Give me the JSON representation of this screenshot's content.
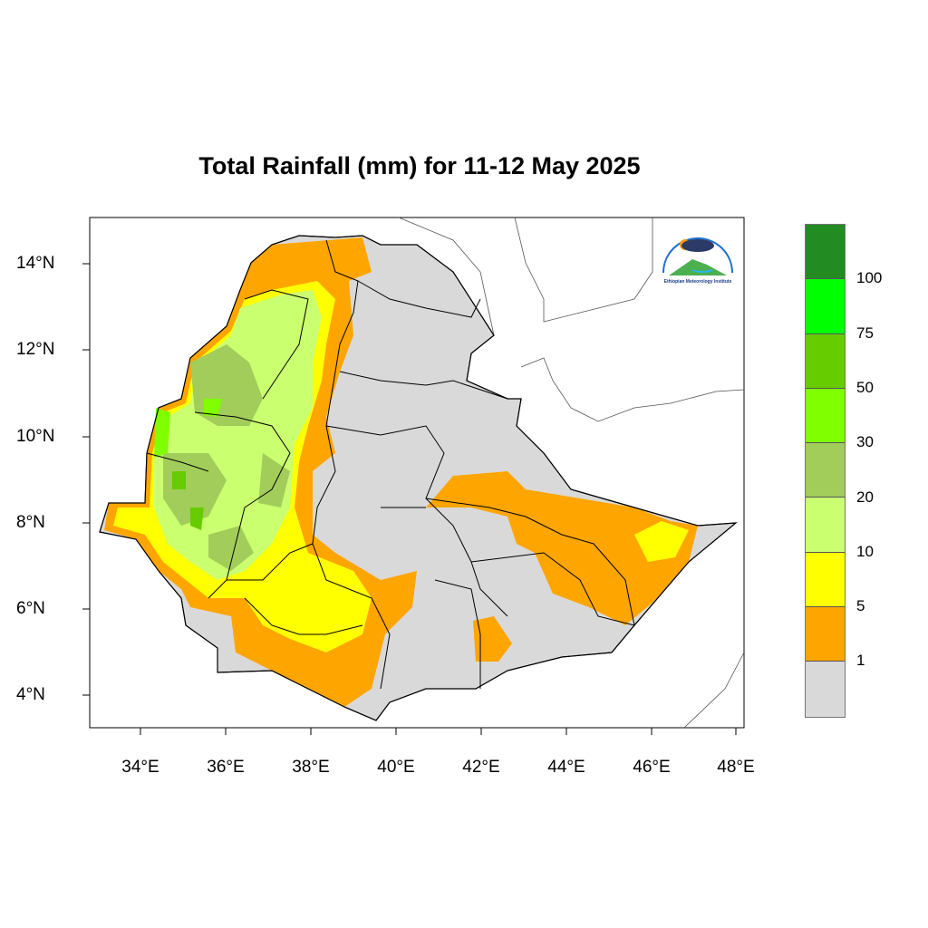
{
  "title": "Total Rainfall (mm) for 11-12 May 2025",
  "x_ticks": [
    "34°E",
    "36°E",
    "38°E",
    "40°E",
    "42°E",
    "44°E",
    "46°E",
    "48°E"
  ],
  "y_ticks": [
    "14°N",
    "12°N",
    "10°N",
    "8°N",
    "6°N",
    "4°N"
  ],
  "legend": {
    "colors": [
      "#228b22",
      "#00ff00",
      "#66cc00",
      "#7fff00",
      "#a2cd5a",
      "#caff70",
      "#ffff00",
      "#ffa500",
      "#d9d9d9"
    ],
    "labels": [
      "100",
      "75",
      "50",
      "30",
      "20",
      "10",
      "5",
      "1"
    ]
  },
  "logo": {
    "text": "Ethiopian Meteorology Institute"
  },
  "map": {
    "region": "Ethiopia",
    "lon_range": [
      33,
      48.2
    ],
    "lat_range": [
      3.2,
      15
    ],
    "base_color": "#d9d9d9"
  }
}
